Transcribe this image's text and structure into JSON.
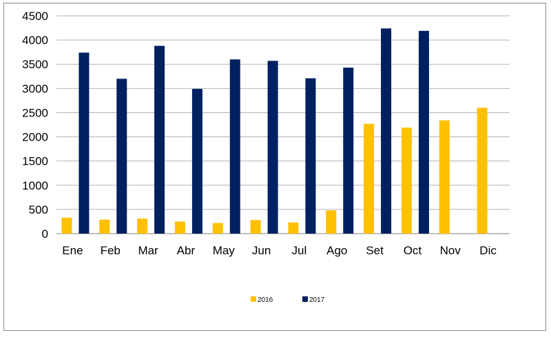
{
  "chart_data": {
    "type": "bar",
    "title": "",
    "xlabel": "",
    "ylabel": "",
    "categories": [
      "Ene",
      "Feb",
      "Mar",
      "Abr",
      "May",
      "Jun",
      "Jul",
      "Ago",
      "Set",
      "Oct",
      "Nov",
      "Dic"
    ],
    "series": [
      {
        "name": "2016",
        "color": "#FFC000",
        "values": [
          330,
          290,
          310,
          250,
          220,
          280,
          230,
          480,
          2270,
          2190,
          2340,
          2600
        ]
      },
      {
        "name": "2017",
        "color": "#002060",
        "values": [
          3740,
          3200,
          3880,
          2990,
          3600,
          3570,
          3210,
          3430,
          4240,
          4190,
          null,
          null
        ]
      }
    ],
    "ylim": [
      0,
      4500
    ],
    "yticks": [
      0,
      500,
      1000,
      1500,
      2000,
      2500,
      3000,
      3500,
      4000,
      4500
    ],
    "grid": true,
    "legend": "bottom"
  }
}
